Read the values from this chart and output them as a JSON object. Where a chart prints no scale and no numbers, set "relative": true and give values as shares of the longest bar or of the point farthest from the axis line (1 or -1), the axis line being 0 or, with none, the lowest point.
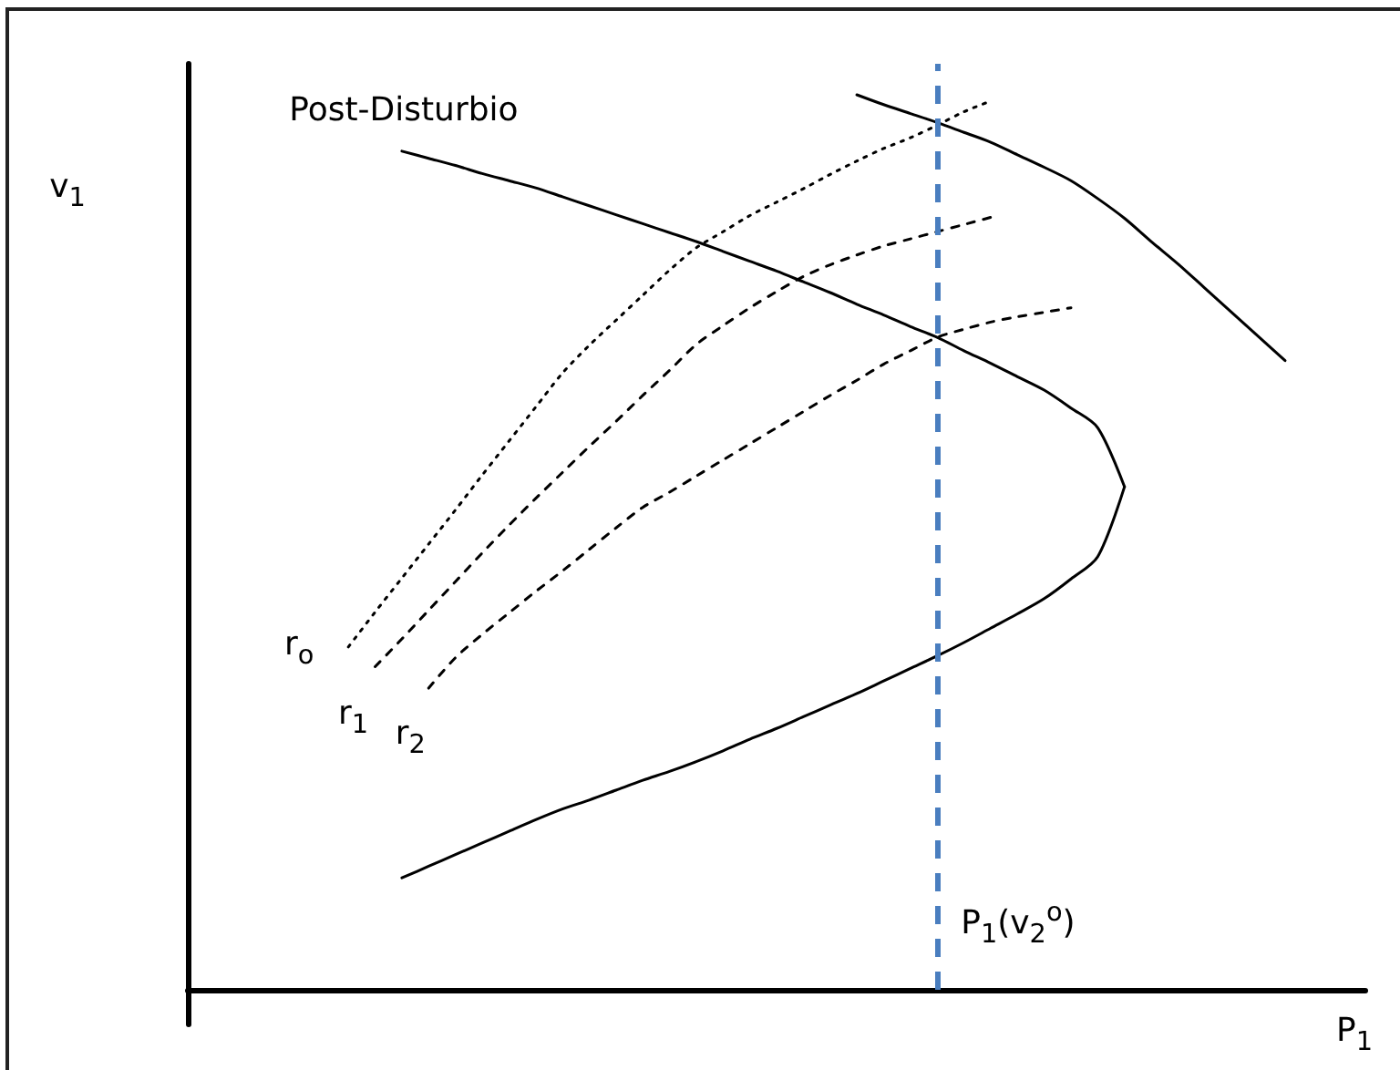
{
  "chart_data": {
    "type": "line",
    "relative": true,
    "marker": "none",
    "line_style": "solid",
    "xlabel": "P$_{1}$",
    "ylabel": "v$_{1}$",
    "annotations": [
      "P$_{1}$(v$_{2}$$^{o}$)"
    ],
    "categories": [
      null,
      null,
      null,
      null,
      null,
      null,
      null,
      null,
      null,
      null,
      null,
      null,
      null,
      null,
      null,
      null,
      null,
      null,
      null,
      null,
      null,
      null,
      null,
      null,
      null,
      null,
      null,
      null,
      null,
      null,
      null,
      null,
      null,
      null,
      null,
      null,
      null,
      null,
      null,
      null,
      null,
      null,
      null,
      null,
      null
    ],
    "series": [
      {
        "name": "Post-Disturbio",
        "color": "#000000",
        "values": [
          null,
          null,
          null,
          null,
          null,
          null,
          null,
          null,
          0.937,
          0.929,
          0.921,
          0.912,
          0.904,
          0.896,
          0.886,
          0.876,
          0.866,
          0.856,
          0.846,
          0.836,
          0.825,
          0.814,
          0.803,
          0.791,
          0.779,
          0.766,
          0.754,
          0.741,
          0.729,
          0.714,
          0.7,
          0.685,
          0.67,
          0.65,
          0.628,
          0.562,
          null,
          null,
          null,
          null,
          null,
          null,
          null,
          null,
          null
        ]
      },
      {
        "color": "#000000",
        "values": [
          null,
          null,
          null,
          null,
          null,
          null,
          null,
          null,
          0.125,
          0.138,
          0.151,
          0.164,
          0.177,
          0.19,
          0.202,
          0.212,
          0.223,
          0.234,
          0.244,
          0.255,
          0.267,
          0.28,
          0.292,
          0.305,
          0.318,
          0.331,
          0.345,
          0.359,
          0.373,
          0.388,
          0.404,
          0.42,
          0.437,
          0.459,
          0.484,
          0.562,
          null,
          null,
          null,
          null,
          null,
          null,
          null,
          null,
          null
        ]
      },
      {
        "color": "#000000",
        "values": [
          null,
          null,
          null,
          null,
          null,
          null,
          null,
          null,
          null,
          null,
          null,
          null,
          null,
          null,
          null,
          null,
          null,
          null,
          null,
          null,
          null,
          null,
          null,
          null,
          null,
          1.0,
          0.989,
          0.979,
          0.969,
          0.958,
          0.947,
          0.933,
          0.919,
          0.904,
          0.884,
          0.862,
          0.836,
          0.811,
          0.784,
          0.757,
          0.73,
          0.703,
          null,
          null,
          null
        ]
      },
      {
        "name": "r$_{o}$",
        "color": "#000000",
        "line_style": "dotted",
        "values": [
          null,
          null,
          null,
          null,
          null,
          null,
          0.383,
          0.422,
          0.46,
          0.498,
          0.536,
          0.575,
          0.613,
          0.651,
          0.689,
          0.72,
          0.748,
          0.776,
          0.804,
          0.829,
          0.847,
          0.865,
          0.88,
          0.895,
          0.911,
          0.926,
          0.94,
          0.952,
          0.966,
          0.981,
          0.993,
          null,
          null,
          null,
          null,
          null,
          null,
          null,
          null,
          null,
          null,
          null,
          null,
          null,
          null
        ]
      },
      {
        "name": "r$_{1}$",
        "color": "#000000",
        "line_style": "dashed",
        "values": [
          null,
          null,
          null,
          null,
          null,
          null,
          null,
          0.361,
          0.392,
          0.424,
          0.456,
          0.488,
          0.519,
          0.549,
          0.578,
          0.607,
          0.635,
          0.664,
          0.692,
          0.721,
          0.742,
          0.762,
          0.78,
          0.797,
          0.81,
          0.821,
          0.831,
          0.839,
          0.847,
          0.855,
          0.863,
          null,
          null,
          null,
          null,
          null,
          null,
          null,
          null,
          null,
          null,
          null,
          null,
          null,
          null
        ]
      },
      {
        "name": "r$_{2}$",
        "color": "#000000",
        "line_style": "dashed",
        "values": [
          null,
          null,
          null,
          null,
          null,
          null,
          null,
          null,
          null,
          0.337,
          0.371,
          0.397,
          0.421,
          0.445,
          0.468,
          0.492,
          0.516,
          0.539,
          0.556,
          0.574,
          0.592,
          0.61,
          0.628,
          0.646,
          0.664,
          0.681,
          0.699,
          0.714,
          0.729,
          0.738,
          0.746,
          0.752,
          0.757,
          0.762,
          null,
          null,
          null,
          null,
          null,
          null,
          null,
          null,
          null,
          null,
          null
        ]
      }
    ]
  }
}
